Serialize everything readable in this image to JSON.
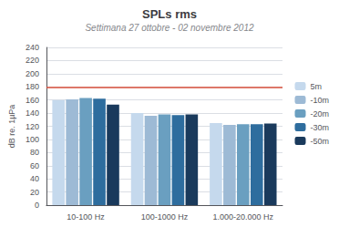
{
  "chart_data": {
    "type": "bar",
    "title": "SPLs rms",
    "subtitle": "Settimana 27 ottobre - 02 novembre 2012",
    "categories": [
      "10-100 Hz",
      "100-1000 Hz",
      "1.000-20.000 Hz"
    ],
    "series": [
      {
        "name": "5m",
        "color": "#c5d9ed",
        "values": [
          160,
          140,
          125
        ]
      },
      {
        "name": "-10m",
        "color": "#9dbad5",
        "values": [
          161,
          136,
          122
        ]
      },
      {
        "name": "-20m",
        "color": "#6a9fc0",
        "values": [
          163,
          138,
          123
        ]
      },
      {
        "name": "-30m",
        "color": "#2e6d9e",
        "values": [
          162,
          137,
          123
        ]
      },
      {
        "name": "-50m",
        "color": "#1a3a5c",
        "values": [
          153,
          138,
          124
        ]
      }
    ],
    "hline": {
      "y": 180,
      "color": "#d94f3d"
    },
    "ylabel": "dB re. 1µPa",
    "ylim": [
      0,
      240
    ],
    "yticks": [
      0,
      20,
      40,
      60,
      80,
      100,
      120,
      140,
      160,
      180,
      200,
      220,
      240
    ],
    "grid": true,
    "legend": "right"
  }
}
